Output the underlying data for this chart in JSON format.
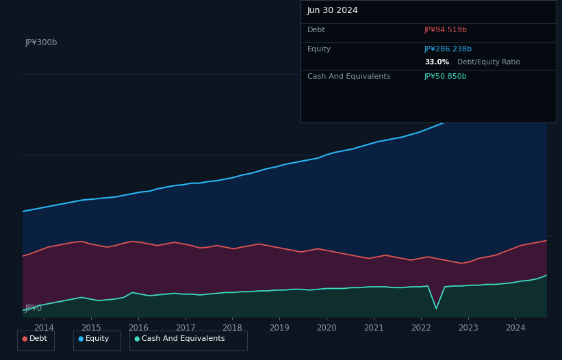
{
  "background_color": "#0d1520",
  "plot_bg_color": "#0d1520",
  "ylabel_top": "JP¥300b",
  "ylabel_bottom": "JP¥0",
  "x_ticks": [
    2014,
    2015,
    2016,
    2017,
    2018,
    2019,
    2020,
    2021,
    2022,
    2023,
    2024
  ],
  "equity_color": "#29b6f6",
  "equity_fill": "#0a2040",
  "debt_color": "#e05555",
  "debt_fill": "#3d1535",
  "cash_color": "#3ddbc0",
  "cash_fill": "#0f2e2e",
  "grid_color": "#1e2d44",
  "tooltip_title": "Jun 30 2024",
  "tooltip_debt_label": "Debt",
  "tooltip_debt_value": "JP¥94.519b",
  "tooltip_equity_label": "Equity",
  "tooltip_equity_value": "JP¥286.238b",
  "tooltip_ratio": "33.0%",
  "tooltip_ratio_label": " Debt/Equity Ratio",
  "tooltip_cash_label": "Cash And Equivalents",
  "tooltip_cash_value": "JP¥50.850b",
  "legend_debt": "Debt",
  "legend_equity": "Equity",
  "legend_cash": "Cash And Equivalents",
  "equity_values": [
    130,
    132,
    134,
    136,
    138,
    140,
    142,
    144,
    145,
    146,
    147,
    148,
    150,
    152,
    154,
    155,
    158,
    160,
    162,
    163,
    165,
    165,
    167,
    168,
    170,
    172,
    175,
    177,
    180,
    183,
    185,
    188,
    190,
    192,
    194,
    196,
    200,
    203,
    205,
    207,
    210,
    213,
    216,
    218,
    220,
    222,
    225,
    228,
    232,
    236,
    240,
    244,
    248,
    252,
    256,
    260,
    263,
    267,
    272,
    276,
    280,
    283,
    286
  ],
  "debt_values": [
    75,
    78,
    82,
    86,
    88,
    90,
    92,
    93,
    90,
    88,
    86,
    88,
    91,
    93,
    92,
    90,
    88,
    90,
    92,
    90,
    88,
    85,
    86,
    88,
    86,
    84,
    86,
    88,
    90,
    88,
    86,
    84,
    82,
    80,
    82,
    84,
    82,
    80,
    78,
    76,
    74,
    72,
    74,
    76,
    74,
    72,
    70,
    72,
    74,
    72,
    70,
    68,
    66,
    68,
    72,
    74,
    76,
    80,
    84,
    88,
    90,
    92,
    94
  ],
  "cash_values": [
    8,
    10,
    14,
    16,
    18,
    20,
    22,
    24,
    22,
    20,
    21,
    22,
    24,
    30,
    28,
    26,
    27,
    28,
    29,
    28,
    28,
    27,
    28,
    29,
    30,
    30,
    31,
    31,
    32,
    32,
    33,
    33,
    34,
    34,
    33,
    34,
    35,
    35,
    35,
    36,
    36,
    37,
    37,
    37,
    36,
    36,
    37,
    37,
    38,
    10,
    37,
    38,
    38,
    39,
    39,
    40,
    40,
    41,
    42,
    44,
    45,
    47,
    51
  ],
  "n_points": 63,
  "ylim_max": 320
}
